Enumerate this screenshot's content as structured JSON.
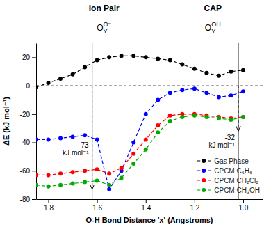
{
  "chart_data": {
    "type": "line",
    "headers": [
      {
        "text": "Ion Pair",
        "formula": {
          "base": "O",
          "sub": "Y",
          "sup": "O⁻"
        }
      },
      {
        "text": "CAP",
        "formula": {
          "base": "O",
          "sub": "Y",
          "sup": "OH"
        }
      }
    ],
    "xlabel": "O-H Bond Distance 'x' (Angstroms)",
    "ylabel": "ΔE (kJ mol⁻¹)",
    "x": [
      1.85,
      1.8,
      1.75,
      1.7,
      1.65,
      1.6,
      1.55,
      1.5,
      1.45,
      1.4,
      1.35,
      1.3,
      1.25,
      1.2,
      1.15,
      1.1,
      1.05,
      1.0
    ],
    "series": [
      {
        "name": "Gas Phase",
        "color": "#000000",
        "values": [
          -1,
          2,
          5,
          8,
          13,
          18,
          20,
          21,
          21,
          20,
          19,
          18,
          15,
          12,
          9,
          7,
          10,
          11
        ]
      },
      {
        "name": "CPCM C₆H₆",
        "color": "#0000FF",
        "values": [
          -38,
          -38,
          -37,
          -36,
          -35,
          -38,
          -73,
          -60,
          -40,
          -20,
          -10,
          -5,
          -3,
          -2,
          -5,
          -8,
          -7,
          -4
        ]
      },
      {
        "name": "CPCM CH₂Cl₂",
        "color": "#FF0000",
        "values": [
          -63,
          -63,
          -62,
          -61,
          -60,
          -59,
          -62,
          -58,
          -48,
          -38,
          -28,
          -21,
          -20,
          -20,
          -21,
          -22,
          -23,
          -22
        ]
      },
      {
        "name": "CPCM CH₃OH",
        "color": "#00AA00",
        "values": [
          -70,
          -71,
          -70,
          -69,
          -68,
          -67,
          -70,
          -65,
          -55,
          -45,
          -33,
          -25,
          -22,
          -21,
          -22,
          -23,
          -24,
          -22
        ]
      }
    ],
    "xlim": [
      1.85,
      0.92
    ],
    "ylim": [
      -80,
      30
    ],
    "xticks": [
      1.8,
      1.6,
      1.4,
      1.2,
      {
        "value": 1.0,
        "label": "1.0"
      }
    ],
    "yticks": [
      -80,
      -60,
      -40,
      -20,
      0,
      20
    ],
    "hline": 0,
    "vlines": [
      1.62,
      1.02
    ],
    "annotations": [
      {
        "text": "-73\nkJ mol⁻¹",
        "x": 1.62,
        "y": -73
      },
      {
        "text": "-32\nkJ mol⁻¹",
        "x": 1.02,
        "y": -32
      }
    ],
    "marker": "circle",
    "line_style": "dashed",
    "grid": false,
    "legend": "lower right"
  }
}
